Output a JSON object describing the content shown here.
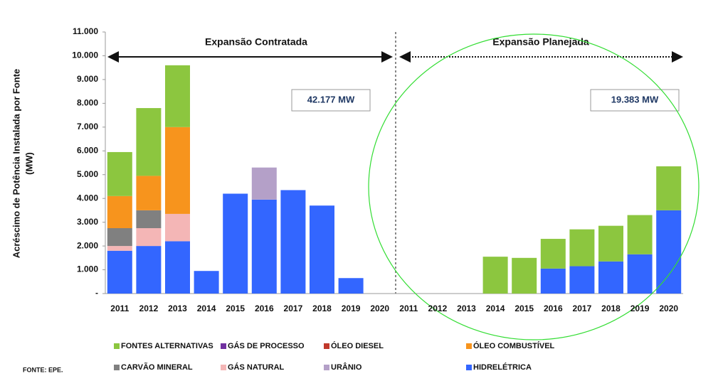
{
  "chart_data": {
    "type": "bar",
    "stacked": true,
    "y_label": [
      "Acréscimo de Potência Instalada  por Fonte",
      "(MW)"
    ],
    "annotations": [
      "Expansão Contratada",
      "Expansão Planejada",
      "42.177 MW",
      "19.383 MW"
    ],
    "source": "FONTE: EPE.",
    "categories": [
      "2011",
      "2012",
      "2013",
      "2014",
      "2015",
      "2016",
      "2017",
      "2018",
      "2019",
      "2020",
      "2011",
      "2012",
      "2013",
      "2014",
      "2015",
      "2016",
      "2017",
      "2018",
      "2019",
      "2020"
    ],
    "series": [
      {
        "name": "FONTES ALTERNATIVAS",
        "color": "#8cc63f",
        "values": [
          1850,
          2850,
          2600,
          0,
          0,
          0,
          0,
          0,
          0,
          0,
          0,
          0,
          0,
          1550,
          1500,
          1250,
          1550,
          1500,
          1650,
          1850
        ]
      },
      {
        "name": "GÁS DE PROCESSO",
        "color": "#7030a0",
        "values": [
          0,
          0,
          0,
          0,
          0,
          0,
          0,
          0,
          0,
          0,
          0,
          0,
          0,
          0,
          0,
          0,
          0,
          0,
          0,
          0
        ]
      },
      {
        "name": "ÓLEO DIESEL",
        "color": "#c0392b",
        "values": [
          0,
          0,
          0,
          0,
          0,
          0,
          0,
          0,
          0,
          0,
          0,
          0,
          0,
          0,
          0,
          0,
          0,
          0,
          0,
          0
        ]
      },
      {
        "name": "ÓLEO COMBUSTÍVEL",
        "color": "#f7941d",
        "values": [
          1350,
          1450,
          3650,
          0,
          0,
          0,
          0,
          0,
          0,
          0,
          0,
          0,
          0,
          0,
          0,
          0,
          0,
          0,
          0,
          0
        ]
      },
      {
        "name": "CARVÃO MINERAL",
        "color": "#808080",
        "values": [
          750,
          750,
          0,
          0,
          0,
          0,
          0,
          0,
          0,
          0,
          0,
          0,
          0,
          0,
          0,
          0,
          0,
          0,
          0,
          0
        ]
      },
      {
        "name": "GÁS NATURAL",
        "color": "#f4b6b6",
        "values": [
          200,
          750,
          1150,
          0,
          0,
          0,
          0,
          0,
          0,
          0,
          0,
          0,
          0,
          0,
          0,
          0,
          0,
          0,
          0,
          0
        ]
      },
      {
        "name": "URÂNIO",
        "color": "#b4a0c8",
        "values": [
          0,
          0,
          0,
          0,
          0,
          1350,
          0,
          0,
          0,
          0,
          0,
          0,
          0,
          0,
          0,
          0,
          0,
          0,
          0,
          0
        ]
      },
      {
        "name": "HIDRELÉTRICA",
        "color": "#3366ff",
        "values": [
          1800,
          2000,
          2200,
          950,
          4200,
          3950,
          4350,
          3700,
          650,
          0,
          0,
          0,
          0,
          0,
          0,
          1050,
          1150,
          1350,
          1650,
          3500
        ]
      }
    ],
    "ylim": [
      0,
      11000
    ],
    "yticks": [
      {
        "value": 0,
        "label": "-"
      },
      {
        "value": 1000,
        "label": "1.000"
      },
      {
        "value": 2000,
        "label": "2.000"
      },
      {
        "value": 3000,
        "label": "3.000"
      },
      {
        "value": 4000,
        "label": "4.000"
      },
      {
        "value": 5000,
        "label": "5.000"
      },
      {
        "value": 6000,
        "label": "6.000"
      },
      {
        "value": 7000,
        "label": "7.000"
      },
      {
        "value": 8000,
        "label": "8.000"
      },
      {
        "value": 9000,
        "label": "9.000"
      },
      {
        "value": 10000,
        "label": "10.000"
      },
      {
        "value": 11000,
        "label": "11.000"
      }
    ]
  }
}
